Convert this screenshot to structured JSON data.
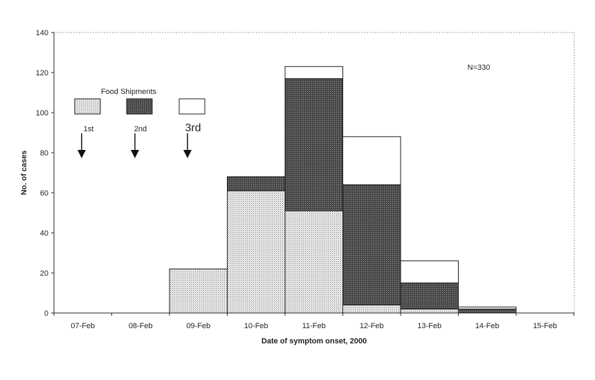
{
  "chart_data": {
    "type": "bar",
    "stacked": true,
    "categories": [
      "07-Feb",
      "08-Feb",
      "09-Feb",
      "10-Feb",
      "11-Feb",
      "12-Feb",
      "13-Feb",
      "14-Feb",
      "15-Feb"
    ],
    "series": [
      {
        "name": "1st",
        "values": [
          0,
          0,
          22,
          61,
          51,
          4,
          2,
          0,
          0
        ]
      },
      {
        "name": "2nd",
        "values": [
          0,
          0,
          0,
          7,
          66,
          60,
          13,
          2,
          0
        ]
      },
      {
        "name": "3rd",
        "values": [
          0,
          0,
          0,
          0,
          6,
          24,
          11,
          1,
          0
        ]
      }
    ],
    "xlabel": "Date of symptom onset, 2000",
    "ylabel": "No. of cases",
    "ylim": [
      0,
      140
    ],
    "yticks": [
      0,
      20,
      40,
      60,
      80,
      100,
      120,
      140
    ],
    "annotation": "N=330",
    "legend_title": "Food Shipments",
    "legend_placement": "top-left",
    "grid": false,
    "colors": {
      "1st": "#e6e6e6",
      "2nd": "#5a5a5a",
      "3rd": "#ffffff"
    }
  }
}
